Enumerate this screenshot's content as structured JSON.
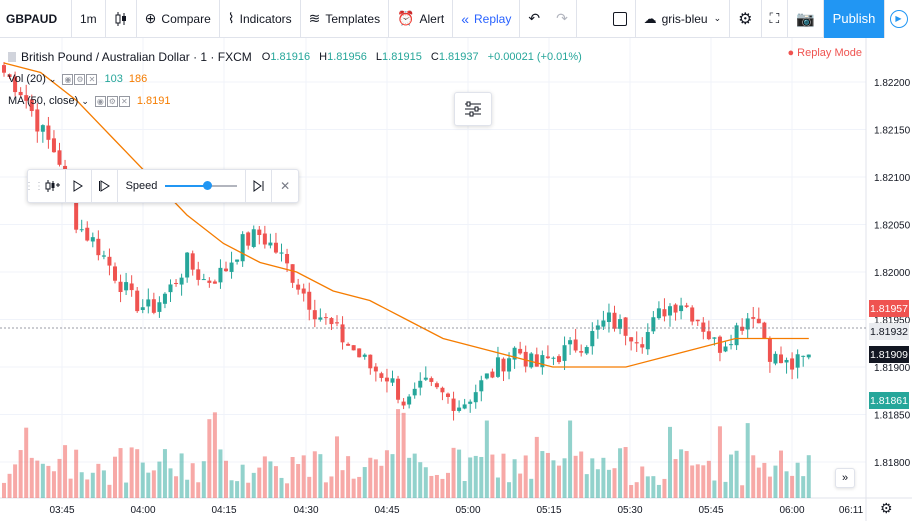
{
  "toolbar": {
    "symbol": "GBPAUD",
    "interval": "1m",
    "compare_label": "Compare",
    "indicators_label": "Indicators",
    "templates_label": "Templates",
    "alert_label": "Alert",
    "replay_label": "Replay",
    "layout_name": "gris-bleu",
    "publish_label": "Publish"
  },
  "legend": {
    "title": "British Pound / Australian Dollar · 1 · FXCM",
    "open_label": "O",
    "open": "1.81916",
    "high_label": "H",
    "high": "1.81956",
    "low_label": "L",
    "low": "1.81915",
    "close_label": "C",
    "close": "1.81937",
    "change": "+0.00021 (+0.01%)",
    "vol_label": "Vol (20)",
    "vol_value_1": "103",
    "vol_value_2": "186",
    "ma_label": "MA (50, close)",
    "ma_value": "1.8191"
  },
  "replay_mode_label": "● Replay Mode",
  "replay_panel": {
    "speed_label": "Speed",
    "speed_level": 0.58
  },
  "price_axis": {
    "ticks": [
      "1.82200",
      "1.82150",
      "1.82100",
      "1.82050",
      "1.82000",
      "1.81950",
      "1.81900",
      "1.81850",
      "1.81800"
    ],
    "tags": [
      {
        "text": "1.81957",
        "color": "#ef5350"
      },
      {
        "text": "1.81932",
        "color": "#e9ebef",
        "text_color": "#131722"
      },
      {
        "text": "1.81909",
        "color": "#131722"
      },
      {
        "text": "1.81861",
        "color": "#26a69a"
      }
    ]
  },
  "time_axis": {
    "ticks": [
      "03:45",
      "04:00",
      "04:15",
      "04:30",
      "04:45",
      "05:00",
      "05:15",
      "05:30",
      "05:45",
      "06:00",
      "06:11"
    ]
  },
  "colors": {
    "up": "#26a69a",
    "down": "#ef5350",
    "ma": "#f57c00",
    "accent": "#2196f3"
  },
  "chart_data": {
    "type": "candlestick",
    "symbol": "GBPAUD",
    "interval": "1m",
    "x_range": [
      "03:40",
      "06:11"
    ],
    "ylim": [
      1.8177,
      1.8224
    ],
    "close_approx": [
      1.8221,
      1.8219,
      1.8215,
      1.8212,
      1.8205,
      1.8203,
      1.82,
      1.8197,
      1.8196,
      1.8198,
      1.8201,
      1.8199,
      1.82,
      1.8203,
      1.8204,
      1.8202,
      1.8199,
      1.8196,
      1.8194,
      1.8192,
      1.819,
      1.8189,
      1.8186,
      1.8188,
      1.8187,
      1.8186,
      1.8188,
      1.819,
      1.8192,
      1.819,
      1.8191,
      1.8192,
      1.8193,
      1.8195,
      1.8194,
      1.8193,
      1.8196,
      1.8197,
      1.8195,
      1.8192,
      1.8194,
      1.8196,
      1.8191,
      1.819,
      1.8191
    ],
    "ma_approx": [
      1.8222,
      1.8221,
      1.8218,
      1.8214,
      1.821,
      1.8206,
      1.8203,
      1.8201,
      1.82,
      1.8198,
      1.8197,
      1.8195,
      1.8193,
      1.8192,
      1.8191,
      1.819,
      1.819,
      1.819,
      1.8191,
      1.8192,
      1.8193,
      1.8193,
      1.8193
    ]
  }
}
